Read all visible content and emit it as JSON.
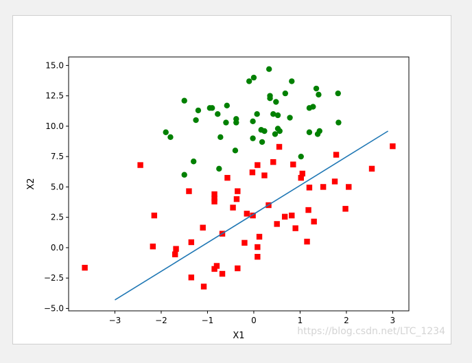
{
  "watermark": "https://blog.csdn.net/LTC_1234",
  "chart_data": {
    "type": "scatter",
    "xlabel": "X1",
    "ylabel": "X2",
    "xlim": [
      -4.0,
      3.35
    ],
    "ylim": [
      -5.2,
      15.7
    ],
    "xticks": [
      -3,
      -2,
      -1,
      0,
      1,
      2,
      3
    ],
    "yticks": [
      -5.0,
      -2.5,
      0.0,
      2.5,
      5.0,
      7.5,
      10.0,
      12.5,
      15.0
    ],
    "grid": false,
    "series": [
      {
        "marker": "circle",
        "color": "#008000",
        "points": [
          [
            -0.1,
            13.7
          ],
          [
            0.0,
            14.0
          ],
          [
            0.33,
            14.7
          ],
          [
            0.82,
            13.7
          ],
          [
            0.68,
            12.7
          ],
          [
            0.35,
            12.3
          ],
          [
            0.35,
            12.5
          ],
          [
            0.48,
            12.0
          ],
          [
            -1.5,
            12.1
          ],
          [
            -0.58,
            11.7
          ],
          [
            -0.95,
            11.5
          ],
          [
            -0.9,
            11.5
          ],
          [
            -1.2,
            11.3
          ],
          [
            -0.78,
            11.0
          ],
          [
            0.07,
            11.0
          ],
          [
            0.42,
            11.0
          ],
          [
            0.52,
            10.9
          ],
          [
            -1.25,
            10.5
          ],
          [
            -0.38,
            10.6
          ],
          [
            -0.6,
            10.3
          ],
          [
            -0.38,
            10.3
          ],
          [
            -0.02,
            10.4
          ],
          [
            0.78,
            10.7
          ],
          [
            1.35,
            13.1
          ],
          [
            1.4,
            12.6
          ],
          [
            1.82,
            12.7
          ],
          [
            1.2,
            11.5
          ],
          [
            1.28,
            11.6
          ],
          [
            1.83,
            10.3
          ],
          [
            0.16,
            9.7
          ],
          [
            0.23,
            9.6
          ],
          [
            0.52,
            9.8
          ],
          [
            0.56,
            9.6
          ],
          [
            0.46,
            9.35
          ],
          [
            -1.9,
            9.5
          ],
          [
            -1.8,
            9.1
          ],
          [
            -0.72,
            9.1
          ],
          [
            -0.02,
            9.0
          ],
          [
            0.18,
            8.7
          ],
          [
            -0.4,
            8.0
          ],
          [
            1.2,
            9.5
          ],
          [
            1.38,
            9.35
          ],
          [
            1.42,
            9.6
          ],
          [
            -1.3,
            7.1
          ],
          [
            -0.75,
            6.5
          ],
          [
            1.02,
            7.5
          ],
          [
            -1.5,
            6.0
          ]
        ]
      },
      {
        "marker": "square",
        "color": "#ff0000",
        "points": [
          [
            -3.65,
            -1.65
          ],
          [
            -2.45,
            6.8
          ],
          [
            -2.15,
            2.65
          ],
          [
            -2.18,
            0.1
          ],
          [
            -1.68,
            -0.1
          ],
          [
            -1.7,
            -0.55
          ],
          [
            -1.4,
            4.65
          ],
          [
            -1.35,
            0.45
          ],
          [
            -1.35,
            -2.45
          ],
          [
            -1.1,
            1.65
          ],
          [
            -1.08,
            -3.2
          ],
          [
            -0.85,
            4.4
          ],
          [
            -0.85,
            4.05
          ],
          [
            -0.85,
            3.8
          ],
          [
            -0.85,
            -1.75
          ],
          [
            -0.8,
            -1.5
          ],
          [
            -0.68,
            1.15
          ],
          [
            -0.68,
            -2.15
          ],
          [
            -0.57,
            5.75
          ],
          [
            -0.45,
            3.3
          ],
          [
            -0.37,
            4.0
          ],
          [
            -0.35,
            4.65
          ],
          [
            -0.35,
            -1.7
          ],
          [
            -0.2,
            0.4
          ],
          [
            -0.15,
            2.8
          ],
          [
            -0.03,
            6.2
          ],
          [
            -0.02,
            2.65
          ],
          [
            0.08,
            6.8
          ],
          [
            0.08,
            0.05
          ],
          [
            0.08,
            -0.75
          ],
          [
            0.12,
            0.9
          ],
          [
            0.23,
            5.95
          ],
          [
            0.32,
            3.5
          ],
          [
            0.42,
            7.05
          ],
          [
            0.5,
            1.95
          ],
          [
            0.55,
            8.3
          ],
          [
            0.67,
            2.55
          ],
          [
            0.82,
            2.65
          ],
          [
            0.85,
            6.85
          ],
          [
            0.9,
            1.6
          ],
          [
            1.02,
            5.75
          ],
          [
            1.05,
            6.1
          ],
          [
            1.15,
            0.5
          ],
          [
            1.18,
            3.1
          ],
          [
            1.2,
            4.95
          ],
          [
            1.3,
            2.15
          ],
          [
            1.5,
            5.0
          ],
          [
            1.75,
            5.45
          ],
          [
            1.78,
            7.65
          ],
          [
            1.98,
            3.2
          ],
          [
            2.05,
            5.0
          ],
          [
            2.55,
            6.5
          ],
          [
            3.0,
            8.35
          ]
        ]
      },
      {
        "marker": "line",
        "color": "#1f77b4",
        "points": [
          [
            -3.0,
            -4.3
          ],
          [
            2.9,
            9.6
          ]
        ]
      }
    ]
  }
}
